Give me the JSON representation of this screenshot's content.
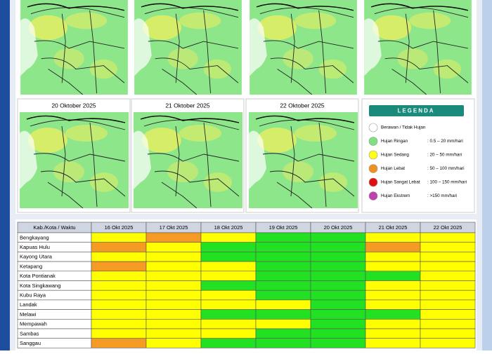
{
  "maps": {
    "titles": [
      "20 Oktober 2025",
      "21 Oktober 2025",
      "22 Oktober 2025"
    ]
  },
  "legend": {
    "title": "LEGENDA",
    "items": [
      {
        "label": "Berawan / Tidak Hujan",
        "range": null,
        "color": "#ffffff"
      },
      {
        "label": "Hujan Ringan",
        "range": ": 0.5 – 20 mm/hari",
        "color": "#7fe07f"
      },
      {
        "label": "Hujan Sedang",
        "range": ": 20 – 50 mm/hari",
        "color": "#ffff1a"
      },
      {
        "label": "Hujan Lebat",
        "range": ": 50 – 100 mm/hari",
        "color": "#f0901e"
      },
      {
        "label": "Hujan Sangat Lebat",
        "range": ": 100 – 150 mm/hari",
        "color": "#e01010"
      },
      {
        "label": "Hujan Ekstrem",
        "range": ": >150 mm/hari",
        "color": "#c040b0"
      }
    ]
  },
  "table": {
    "header": [
      "Kab./Kota / Waktu",
      "16 Okt 2025",
      "17 Okt 2025",
      "18 Okt 2025",
      "19 Okt 2025",
      "20 Okt 2025",
      "21 Okt 2025",
      "22 Okt 2025"
    ],
    "rows": [
      {
        "name": "Bengkayang",
        "cells": [
          "#ffff00",
          "#f59a23",
          "#ffff00",
          "#22e022",
          "#22e022",
          "#ffff00",
          "#ffff00"
        ]
      },
      {
        "name": "Kapuas Hulu",
        "cells": [
          "#f59a23",
          "#ffff00",
          "#22e022",
          "#22e022",
          "#22e022",
          "#f59a23",
          "#ffff00"
        ]
      },
      {
        "name": "Kayong Utara",
        "cells": [
          "#ffff00",
          "#ffff00",
          "#22e022",
          "#22e022",
          "#22e022",
          "#ffff00",
          "#ffff00"
        ]
      },
      {
        "name": "Ketapang",
        "cells": [
          "#f59a23",
          "#ffff00",
          "#ffff00",
          "#22e022",
          "#22e022",
          "#ffff00",
          "#ffff00"
        ]
      },
      {
        "name": "Kota Pontianak",
        "cells": [
          "#ffff00",
          "#ffff00",
          "#ffff00",
          "#22e022",
          "#22e022",
          "#22e022",
          "#ffff00"
        ]
      },
      {
        "name": "Kota Singkawang",
        "cells": [
          "#ffff00",
          "#ffff00",
          "#22e022",
          "#22e022",
          "#22e022",
          "#ffff00",
          "#ffff00"
        ]
      },
      {
        "name": "Kubu Raya",
        "cells": [
          "#ffff00",
          "#ffff00",
          "#ffff00",
          "#22e022",
          "#22e022",
          "#ffff00",
          "#ffff00"
        ]
      },
      {
        "name": "Landak",
        "cells": [
          "#ffff00",
          "#ffff00",
          "#ffff00",
          "#ffff00",
          "#22e022",
          "#ffff00",
          "#ffff00"
        ]
      },
      {
        "name": "Melawi",
        "cells": [
          "#ffff00",
          "#ffff00",
          "#22e022",
          "#22e022",
          "#22e022",
          "#22e022",
          "#ffff00"
        ]
      },
      {
        "name": "Mempawah",
        "cells": [
          "#ffff00",
          "#ffff00",
          "#ffff00",
          "#ffff00",
          "#22e022",
          "#ffff00",
          "#ffff00"
        ]
      },
      {
        "name": "Sambas",
        "cells": [
          "#ffff00",
          "#ffff00",
          "#ffff00",
          "#22e022",
          "#22e022",
          "#ffff00",
          "#ffff00"
        ]
      },
      {
        "name": "Sanggau",
        "cells": [
          "#f59a23",
          "#ffff00",
          "#22e022",
          "#22e022",
          "#22e022",
          "#ffff00",
          "#ffff00"
        ]
      }
    ]
  }
}
